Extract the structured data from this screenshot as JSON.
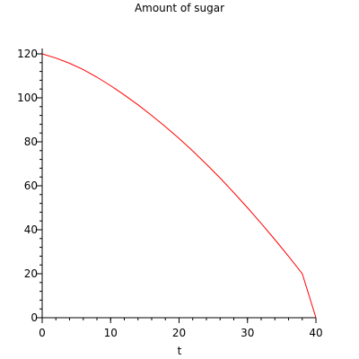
{
  "chart_data": {
    "type": "line",
    "title": "Amount of sugar",
    "xlabel": "t",
    "ylabel": "",
    "xlim": [
      0,
      40
    ],
    "ylim": [
      0,
      120
    ],
    "x_ticks": [
      0,
      10,
      20,
      30,
      40
    ],
    "x_tick_labels": [
      "0",
      "10",
      "20",
      "30",
      "40"
    ],
    "y_ticks": [
      0,
      20,
      40,
      60,
      80,
      100,
      120
    ],
    "y_tick_labels": [
      "0",
      "20",
      "40",
      "60",
      "80",
      "100",
      "120"
    ],
    "x_minor_step": 2,
    "y_minor_step": 4,
    "grid": false,
    "legend": "none",
    "series": [
      {
        "color": "#ff0000",
        "x": [
          0,
          2,
          4,
          6,
          8,
          10,
          12,
          14,
          16,
          18,
          20,
          22,
          24,
          26,
          28,
          30,
          32,
          34,
          36,
          38,
          40
        ],
        "y": [
          120,
          118.1,
          115.7,
          112.8,
          109.4,
          105.5,
          101.3,
          96.8,
          92,
          86.9,
          81.5,
          75.8,
          69.8,
          63.5,
          56.9,
          50,
          42.9,
          35.5,
          27.9,
          20,
          0
        ]
      }
    ]
  }
}
